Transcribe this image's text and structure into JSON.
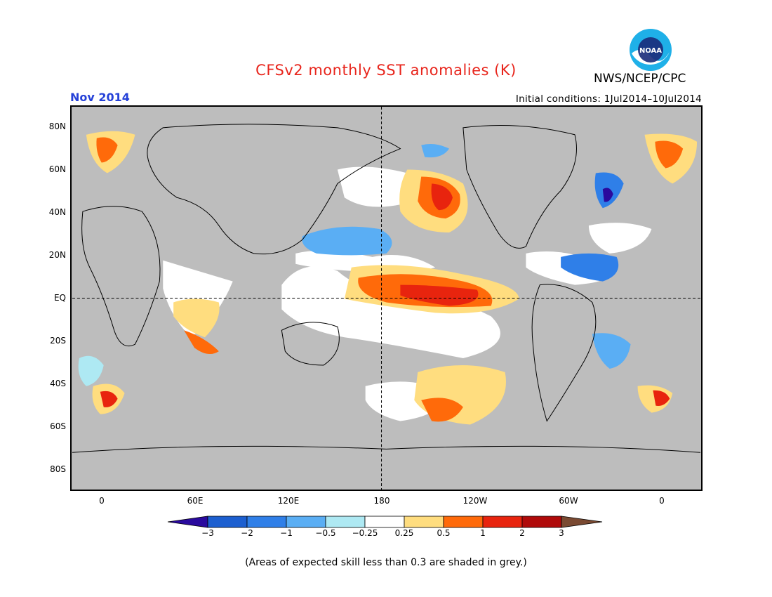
{
  "title": "CFSv2 monthly SST anomalies (K)",
  "agency": "NWS/NCEP/CPC",
  "logo_text": "NOAA",
  "valid_month": "Nov 2014",
  "initial_conditions": "Initial conditions: 1Jul2014–10Jul2014",
  "lat_labels": [
    "80N",
    "60N",
    "40N",
    "20N",
    "EQ",
    "20S",
    "40S",
    "60S",
    "80S"
  ],
  "lon_labels": [
    "0",
    "60E",
    "120E",
    "180",
    "120W",
    "60W",
    "0"
  ],
  "colorbar": {
    "labels": [
      "−3",
      "−2",
      "−1",
      "−0.5",
      "−0.25",
      "0.25",
      "0.5",
      "1",
      "2",
      "3"
    ],
    "colors": [
      "#2a0a9e",
      "#1c5fd0",
      "#2f7fe8",
      "#5aaef4",
      "#aee9f3",
      "#ffffff",
      "#ffdd7f",
      "#ff6a0a",
      "#e8240e",
      "#b00a0a",
      "#7a4a32"
    ]
  },
  "footnote": "(Areas of expected skill less than 0.3 are shaded in grey.)",
  "legend_colors": {
    "land": "#bdbdbd",
    "ocean_no_skill": "#bdbdbd",
    "neutral": "#ffffff"
  }
}
